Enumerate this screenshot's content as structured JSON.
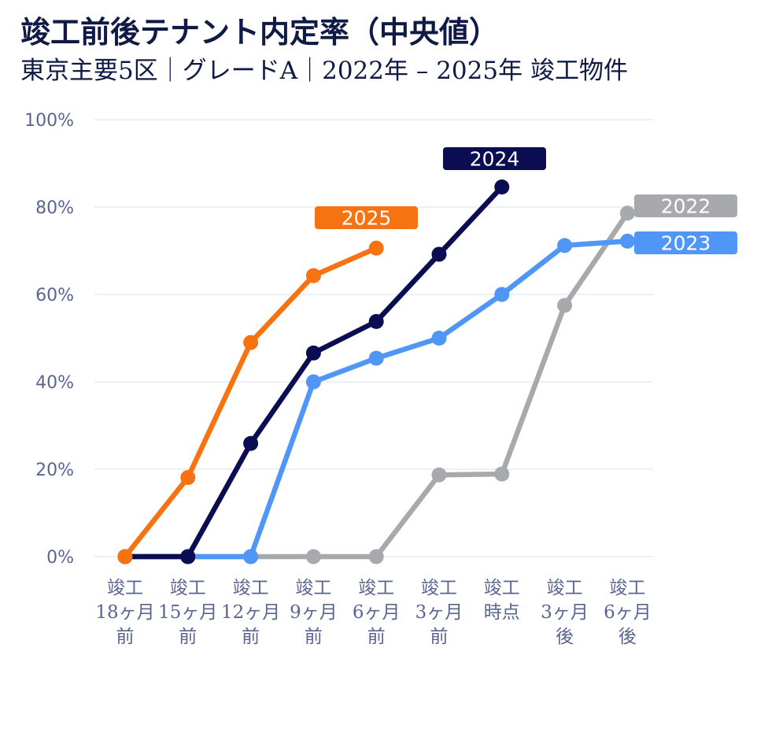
{
  "title": "竣工前後テナント内定率（中央値）",
  "subtitle": "東京主要5区｜グレードA｜2022年 – 2025年 竣工物件",
  "colors": {
    "grid": "#e3e6f2",
    "tick_text": "#5a6590",
    "label_text": "#ffffff"
  },
  "chart_data": {
    "type": "line",
    "title": "竣工前後テナント内定率（中央値）",
    "subtitle": "東京主要5区｜グレードA｜2022年 – 2025年 竣工物件",
    "categories": [
      [
        "竣工",
        "18ヶ月",
        "前"
      ],
      [
        "竣工",
        "15ヶ月",
        "前"
      ],
      [
        "竣工",
        "12ヶ月",
        "前"
      ],
      [
        "竣工",
        "9ヶ月",
        "前"
      ],
      [
        "竣工",
        "6ヶ月",
        "前"
      ],
      [
        "竣工",
        "3ヶ月",
        "前"
      ],
      [
        "竣工",
        "時点"
      ],
      [
        "竣工",
        "3ヶ月",
        "後"
      ],
      [
        "竣工",
        "6ヶ月",
        "後"
      ]
    ],
    "y_ticks": [
      "0%",
      "20%",
      "40%",
      "60%",
      "80%",
      "100%"
    ],
    "ylim": [
      0,
      100
    ],
    "grid": true,
    "legend": "direct labels at series ends",
    "series": [
      {
        "name": "2022",
        "color": "#a7a9ac",
        "values": [
          0,
          0,
          0,
          0,
          0,
          18.7,
          18.9,
          57.5,
          78.6
        ]
      },
      {
        "name": "2023",
        "color": "#4f96f7",
        "values": [
          0,
          0,
          0,
          40,
          45.4,
          50,
          60,
          71.2,
          72.2
        ]
      },
      {
        "name": "2024",
        "color": "#0b0d52",
        "values": [
          0,
          0,
          25.9,
          46.6,
          53.8,
          69.2,
          84.6,
          null,
          null
        ]
      },
      {
        "name": "2025",
        "color": "#f77312",
        "values": [
          0,
          18.1,
          49,
          64.3,
          70.6,
          null,
          null,
          null,
          null
        ]
      }
    ]
  }
}
